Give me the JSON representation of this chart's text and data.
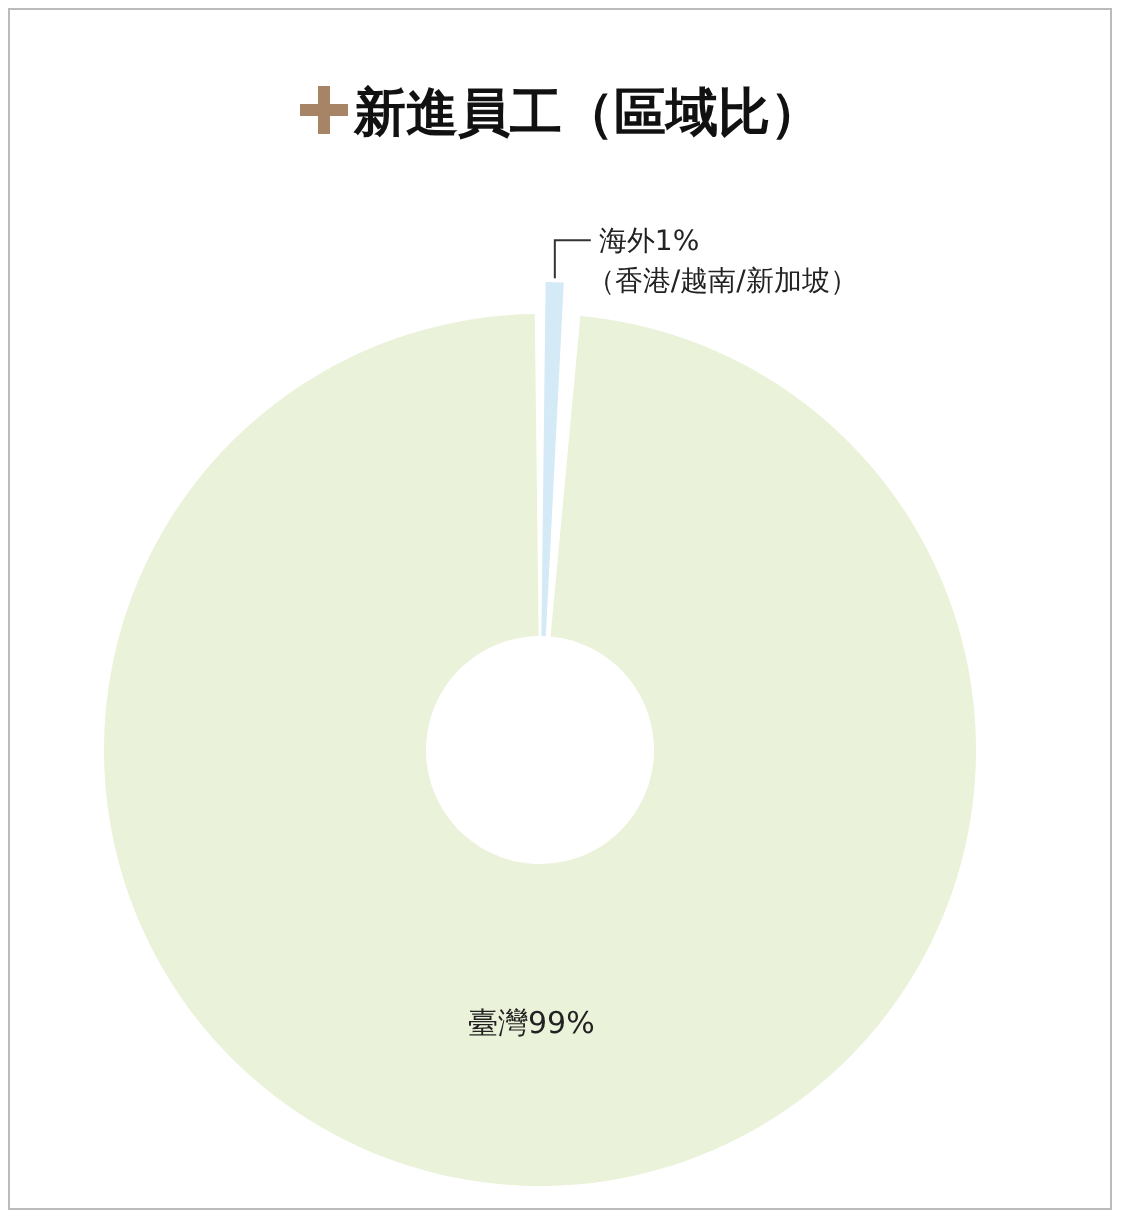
{
  "chart_data": {
    "type": "donut",
    "title": "新進員工（區域比）",
    "categories": [
      "海外",
      "臺灣"
    ],
    "values": [
      1,
      99
    ],
    "value_labels": [
      "1%",
      "99%"
    ],
    "colors": [
      "#d4eaf6",
      "#eaf2d9"
    ],
    "annotations": [
      "（香港/越南/新加坡）"
    ]
  }
}
